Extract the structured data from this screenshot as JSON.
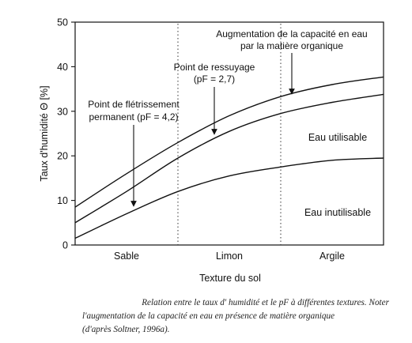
{
  "chart_data": {
    "type": "line",
    "ylabel": "Taux d'humidité Θ [%]",
    "xlabel": "Texture du sol",
    "ylim": [
      0,
      50
    ],
    "yticks": [
      0,
      10,
      20,
      30,
      40,
      50
    ],
    "x_categories": [
      "Sable",
      "Limon",
      "Argile"
    ],
    "xlim": [
      0,
      3
    ],
    "category_boundaries": [
      1,
      2
    ],
    "grid": false,
    "series": [
      {
        "name": "Point de flétrissement permanent (pF = 4,2)",
        "x": [
          0,
          0.5,
          1.0,
          1.5,
          2.0,
          2.5,
          3.0
        ],
        "y": [
          1.5,
          7.0,
          12.0,
          15.5,
          17.5,
          19.0,
          19.5
        ]
      },
      {
        "name": "Point de ressuyage (pF = 2,7)",
        "x": [
          0,
          0.5,
          1.0,
          1.5,
          2.0,
          2.5,
          3.0
        ],
        "y": [
          5.0,
          12.0,
          19.5,
          25.5,
          29.5,
          32.0,
          33.8
        ]
      },
      {
        "name": "Augmentation de la capacité en eau par la matière organique",
        "x": [
          0,
          0.5,
          1.0,
          1.5,
          2.0,
          2.5,
          3.0
        ],
        "y": [
          8.5,
          16.0,
          23.0,
          29.0,
          33.3,
          36.0,
          37.7
        ]
      }
    ],
    "annotations": {
      "organic_line1": "Augmentation de la capacité en eau",
      "organic_line2": "par la matière organique",
      "ressuyage_line1": "Point de ressuyage",
      "ressuyage_line2": "(pF = 2,7)",
      "fletrissement_line1": "Point de flétrissement",
      "fletrissement_line2": "permanent (pF = 4,2)",
      "eau_utilisable": "Eau utilisable",
      "eau_inutilisable": "Eau inutilisable"
    }
  },
  "caption": {
    "line1": "Relation entre le taux d' humidité et le pF à différentes textures. Noter",
    "line2": "l'augmentation de la capacité en eau en présence de matière organique",
    "line3": "(d'après Soltner, 1996a)."
  }
}
